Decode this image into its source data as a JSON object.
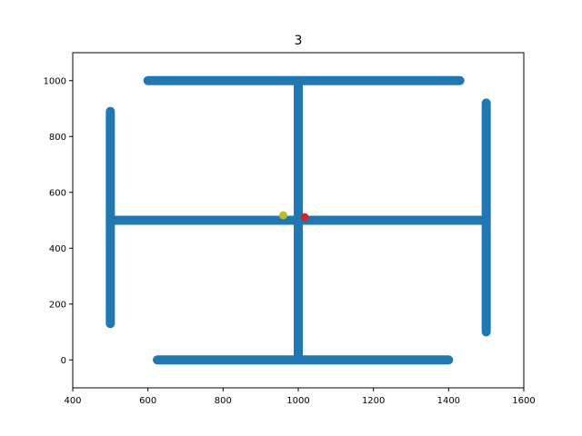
{
  "chart_data": {
    "type": "scatter",
    "title": "3",
    "xlabel": "",
    "ylabel": "",
    "xlim": [
      400,
      1600
    ],
    "ylim": [
      -100,
      1100
    ],
    "xticks": [
      400,
      600,
      800,
      1000,
      1200,
      1400,
      1600
    ],
    "yticks": [
      0,
      200,
      400,
      600,
      800,
      1000
    ],
    "grid": false,
    "series": [
      {
        "color": "#1f77b4",
        "segments": [
          {
            "from": [
              600,
              1000
            ],
            "to": [
              1430,
              1000
            ]
          },
          {
            "from": [
              1000,
              1000
            ],
            "to": [
              1000,
              0
            ]
          },
          {
            "from": [
              500,
              500
            ],
            "to": [
              1500,
              500
            ]
          },
          {
            "from": [
              500,
              890
            ],
            "to": [
              500,
              130
            ]
          },
          {
            "from": [
              1500,
              920
            ],
            "to": [
              1500,
              100
            ]
          },
          {
            "from": [
              625,
              0
            ],
            "to": [
              1400,
              0
            ]
          }
        ]
      },
      {
        "color": "#bcbd22",
        "points": [
          [
            960,
            518
          ]
        ]
      },
      {
        "color": "#d62728",
        "points": [
          [
            1017,
            511
          ]
        ]
      }
    ]
  }
}
